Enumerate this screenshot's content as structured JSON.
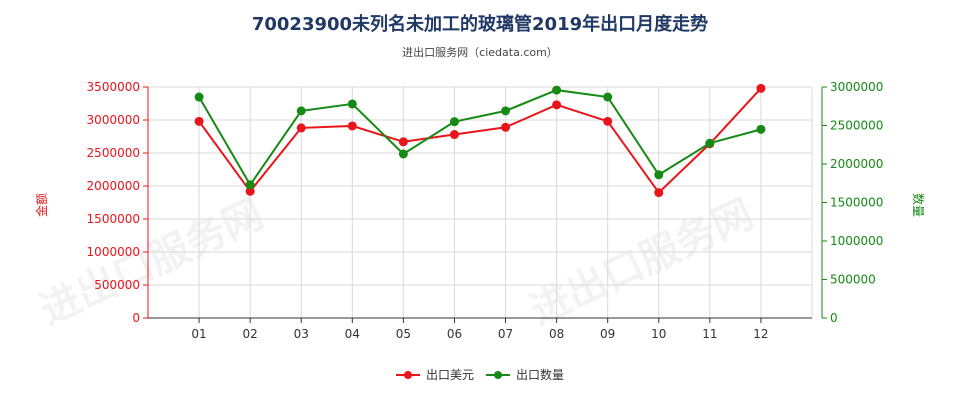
{
  "title": "70023900未列名未加工的玻璃管2019年出口月度走势",
  "subtitle": "进出口服务网（ciedata.com）",
  "watermark": "进出口服务网",
  "chart_data": {
    "type": "line",
    "categories": [
      "01",
      "02",
      "03",
      "04",
      "05",
      "06",
      "07",
      "08",
      "09",
      "10",
      "11",
      "12"
    ],
    "y_left": {
      "label": "金额",
      "lim": [
        0,
        3500000
      ],
      "ticks": [
        0,
        500000,
        1000000,
        1500000,
        2000000,
        2500000,
        3000000,
        3500000
      ],
      "tick_labels": [
        "0",
        "500000",
        "1000000",
        "1500000",
        "2000000",
        "2500000",
        "3000000",
        "3500000"
      ],
      "color": "#e8151b"
    },
    "y_right": {
      "label": "数量",
      "lim": [
        0,
        3000000
      ],
      "ticks": [
        0,
        500000,
        1000000,
        1500000,
        2000000,
        2500000,
        3000000
      ],
      "tick_labels": [
        "0",
        "500000",
        "1000000",
        "1500000",
        "2000000",
        "2500000",
        "3000000"
      ],
      "color": "#158a15"
    },
    "series": [
      {
        "name": "出口美元",
        "axis": "left",
        "color": "#e8151b",
        "values": [
          2980000,
          1920000,
          2880000,
          2910000,
          2670000,
          2780000,
          2890000,
          3230000,
          2980000,
          1900000,
          2640000,
          3480000
        ]
      },
      {
        "name": "出口数量",
        "axis": "right",
        "color": "#158a15",
        "values": [
          2870000,
          1730000,
          2690000,
          2780000,
          2130000,
          2550000,
          2690000,
          2960000,
          2870000,
          1860000,
          2270000,
          2450000
        ]
      }
    ],
    "grid": true,
    "legend": "bottom-center"
  }
}
